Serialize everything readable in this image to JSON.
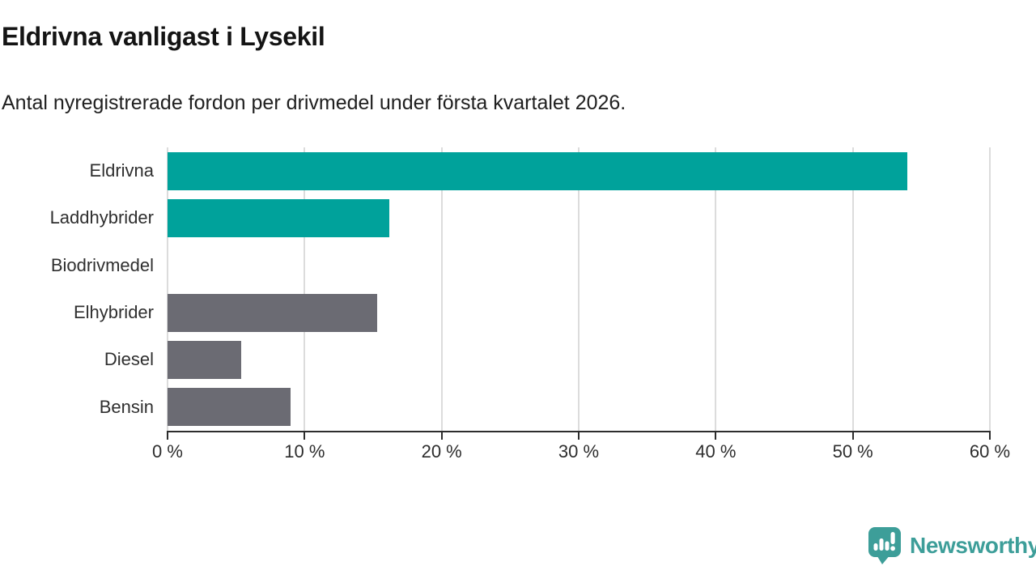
{
  "title": "Eldrivna vanligast i Lysekil",
  "subtitle": "Antal nyregistrerade fordon per drivmedel under första kvartalet 2026.",
  "chart_data": {
    "type": "bar",
    "orientation": "horizontal",
    "title": "Eldrivna vanligast i Lysekil",
    "subtitle": "Antal nyregistrerade fordon per drivmedel under första kvartalet 2026.",
    "categories": [
      "Eldrivna",
      "Laddhybrider",
      "Biodrivmedel",
      "Elhybrider",
      "Diesel",
      "Bensin"
    ],
    "values": [
      54,
      16.2,
      0,
      15.3,
      5.4,
      9
    ],
    "value_unit": "%",
    "xlabel": "",
    "ylabel": "",
    "xlim": [
      0,
      60
    ],
    "x_tick_labels": [
      "0 %",
      "10 %",
      "20 %",
      "30 %",
      "40 %",
      "50 %",
      "60 %"
    ],
    "bar_colors": [
      "#00a29b",
      "#00a29b",
      "#6b6b73",
      "#6b6b73",
      "#6b6b73",
      "#6b6b73"
    ],
    "grid": "vertical-only",
    "legend": "none"
  },
  "footer": {
    "brand": "Newsworthy"
  },
  "colors": {
    "highlight_teal": "#00a29b",
    "muted_gray": "#6b6b73",
    "brand_teal": "#3d9e99",
    "grid_gray": "#dcdcdc",
    "axis_dark": "#2d2d2d"
  }
}
